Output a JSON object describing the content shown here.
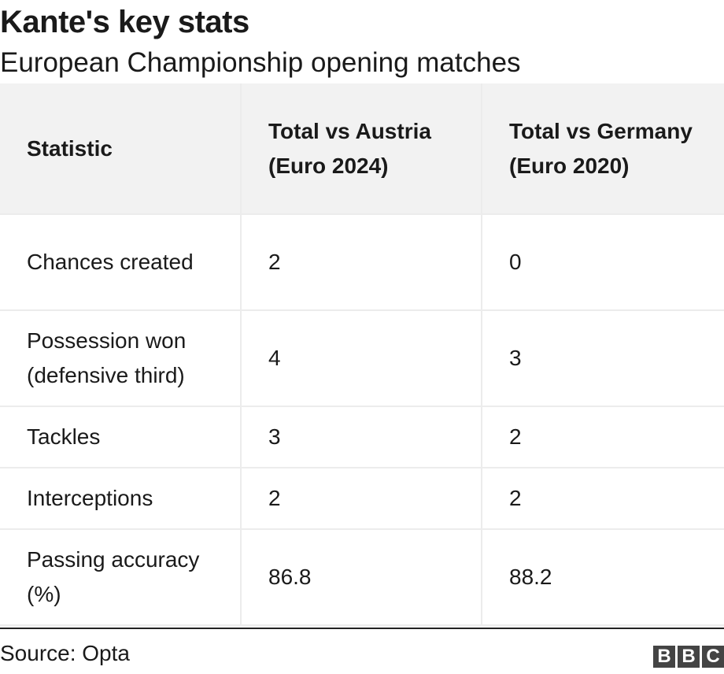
{
  "title": "Kante's key stats",
  "subtitle": "European Championship opening matches",
  "chart_data": {
    "type": "table",
    "title": "Kante's key stats",
    "subtitle": "European Championship opening matches",
    "columns": [
      "Statistic",
      "Total vs Austria (Euro 2024)",
      "Total vs Germany (Euro 2020)"
    ],
    "rows": [
      [
        "Chances created",
        "2",
        "0"
      ],
      [
        "Possession won (defensive third)",
        "4",
        "3"
      ],
      [
        "Tackles",
        "3",
        "2"
      ],
      [
        "Interceptions",
        "2",
        "2"
      ],
      [
        "Passing accuracy (%)",
        "86.8",
        "88.2"
      ]
    ]
  },
  "footer": {
    "source": "Source: Opta",
    "logo_letters": [
      "B",
      "B",
      "C"
    ]
  },
  "colors": {
    "header_bg": "#f2f2f2",
    "grid": "#ececec",
    "text": "#1a1a1a",
    "logo_bg": "#444444"
  }
}
